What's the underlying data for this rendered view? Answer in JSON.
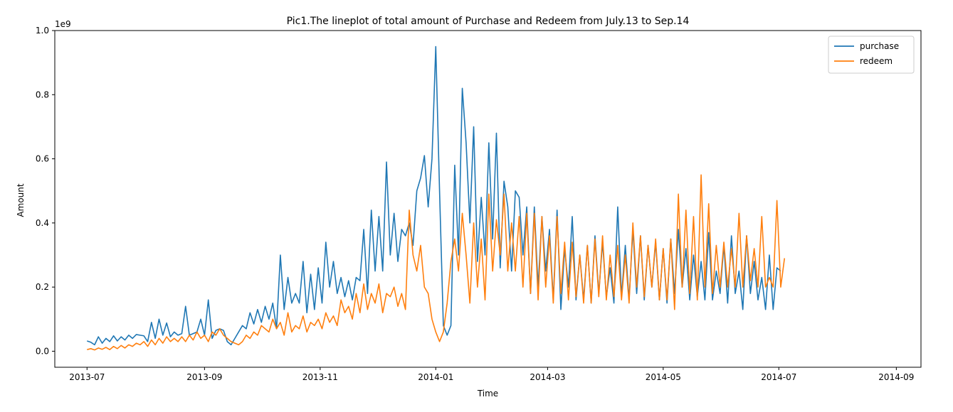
{
  "chart_data": {
    "type": "line",
    "title": "Pic1.The lineplot of total amount of Purchase and Redeem from July.13 to Sep.14",
    "xlabel": "Time",
    "ylabel": "Amount",
    "y_offset_text": "1e9",
    "ylim": [
      -0.05,
      1.0
    ],
    "xlim": [
      "2013-06-14",
      "2014-09-14"
    ],
    "y_ticks": [
      0.0,
      0.2,
      0.4,
      0.6,
      0.8,
      1.0
    ],
    "y_tick_labels": [
      "0.0",
      "0.2",
      "0.4",
      "0.6",
      "0.8",
      "1.0"
    ],
    "x_ticks": [
      "2013-07-01",
      "2013-09-01",
      "2013-11-01",
      "2014-01-01",
      "2014-03-01",
      "2014-05-01",
      "2014-07-01",
      "2014-09-01"
    ],
    "x_tick_labels": [
      "2013-07",
      "2013-09",
      "2013-11",
      "2014-01",
      "2014-03",
      "2014-05",
      "2014-07",
      "2014-09"
    ],
    "legend_position": "top-right",
    "series": [
      {
        "name": "purchase",
        "color": "#1f77b4",
        "start_date": "2013-07-01",
        "step_days": 2,
        "values": [
          0.032,
          0.028,
          0.02,
          0.045,
          0.025,
          0.04,
          0.03,
          0.048,
          0.032,
          0.045,
          0.035,
          0.05,
          0.04,
          0.052,
          0.05,
          0.048,
          0.03,
          0.09,
          0.04,
          0.1,
          0.05,
          0.088,
          0.045,
          0.06,
          0.05,
          0.055,
          0.14,
          0.05,
          0.055,
          0.06,
          0.1,
          0.05,
          0.16,
          0.04,
          0.065,
          0.07,
          0.065,
          0.03,
          0.02,
          0.04,
          0.06,
          0.08,
          0.07,
          0.12,
          0.085,
          0.13,
          0.09,
          0.14,
          0.1,
          0.15,
          0.07,
          0.3,
          0.13,
          0.23,
          0.15,
          0.18,
          0.15,
          0.28,
          0.12,
          0.24,
          0.13,
          0.26,
          0.15,
          0.34,
          0.2,
          0.28,
          0.18,
          0.23,
          0.17,
          0.22,
          0.16,
          0.23,
          0.22,
          0.38,
          0.18,
          0.44,
          0.25,
          0.42,
          0.25,
          0.59,
          0.3,
          0.43,
          0.28,
          0.38,
          0.36,
          0.4,
          0.33,
          0.5,
          0.54,
          0.61,
          0.45,
          0.6,
          0.95,
          0.5,
          0.08,
          0.05,
          0.08,
          0.58,
          0.3,
          0.82,
          0.65,
          0.4,
          0.7,
          0.28,
          0.48,
          0.3,
          0.65,
          0.35,
          0.68,
          0.26,
          0.53,
          0.45,
          0.25,
          0.5,
          0.48,
          0.3,
          0.45,
          0.18,
          0.45,
          0.2,
          0.42,
          0.25,
          0.38,
          0.16,
          0.44,
          0.13,
          0.32,
          0.2,
          0.42,
          0.16,
          0.3,
          0.16,
          0.33,
          0.15,
          0.36,
          0.18,
          0.34,
          0.17,
          0.26,
          0.15,
          0.45,
          0.17,
          0.33,
          0.16,
          0.38,
          0.18,
          0.36,
          0.16,
          0.33,
          0.2,
          0.34,
          0.16,
          0.32,
          0.15,
          0.35,
          0.18,
          0.38,
          0.2,
          0.32,
          0.16,
          0.3,
          0.17,
          0.28,
          0.16,
          0.37,
          0.16,
          0.25,
          0.18,
          0.33,
          0.15,
          0.36,
          0.18,
          0.25,
          0.13,
          0.36,
          0.18,
          0.28,
          0.16,
          0.23,
          0.13,
          0.3,
          0.13,
          0.26,
          0.25
        ]
      },
      {
        "name": "redeem",
        "color": "#ff7f0e",
        "start_date": "2013-07-01",
        "step_days": 2,
        "values": [
          0.005,
          0.008,
          0.004,
          0.01,
          0.006,
          0.012,
          0.005,
          0.015,
          0.008,
          0.018,
          0.01,
          0.02,
          0.015,
          0.025,
          0.02,
          0.03,
          0.015,
          0.035,
          0.02,
          0.04,
          0.025,
          0.045,
          0.03,
          0.04,
          0.03,
          0.045,
          0.03,
          0.05,
          0.035,
          0.06,
          0.04,
          0.05,
          0.03,
          0.06,
          0.05,
          0.07,
          0.05,
          0.04,
          0.03,
          0.025,
          0.02,
          0.03,
          0.05,
          0.04,
          0.06,
          0.05,
          0.08,
          0.07,
          0.06,
          0.1,
          0.07,
          0.09,
          0.05,
          0.12,
          0.06,
          0.08,
          0.07,
          0.11,
          0.06,
          0.09,
          0.08,
          0.1,
          0.07,
          0.12,
          0.09,
          0.11,
          0.08,
          0.16,
          0.12,
          0.14,
          0.1,
          0.18,
          0.12,
          0.21,
          0.13,
          0.18,
          0.15,
          0.21,
          0.12,
          0.18,
          0.17,
          0.2,
          0.14,
          0.18,
          0.13,
          0.44,
          0.3,
          0.25,
          0.33,
          0.2,
          0.18,
          0.1,
          0.06,
          0.03,
          0.06,
          0.15,
          0.28,
          0.35,
          0.25,
          0.43,
          0.3,
          0.15,
          0.4,
          0.2,
          0.35,
          0.16,
          0.49,
          0.25,
          0.41,
          0.3,
          0.49,
          0.25,
          0.4,
          0.25,
          0.42,
          0.2,
          0.43,
          0.18,
          0.43,
          0.16,
          0.42,
          0.2,
          0.36,
          0.15,
          0.42,
          0.18,
          0.34,
          0.16,
          0.34,
          0.17,
          0.3,
          0.15,
          0.33,
          0.15,
          0.35,
          0.17,
          0.36,
          0.16,
          0.3,
          0.17,
          0.33,
          0.16,
          0.3,
          0.15,
          0.4,
          0.2,
          0.36,
          0.17,
          0.33,
          0.2,
          0.35,
          0.16,
          0.32,
          0.16,
          0.35,
          0.13,
          0.49,
          0.2,
          0.44,
          0.18,
          0.42,
          0.16,
          0.55,
          0.2,
          0.46,
          0.18,
          0.33,
          0.2,
          0.34,
          0.2,
          0.32,
          0.2,
          0.43,
          0.2,
          0.36,
          0.22,
          0.32,
          0.2,
          0.42,
          0.2,
          0.23,
          0.2,
          0.47,
          0.2,
          0.29
        ]
      }
    ]
  }
}
